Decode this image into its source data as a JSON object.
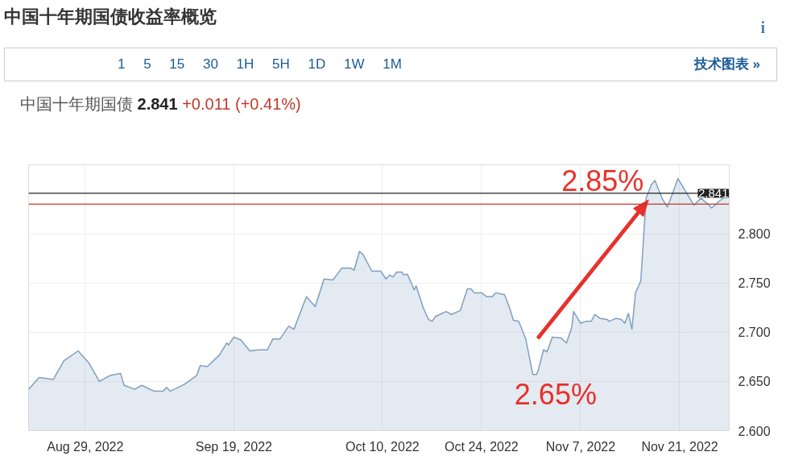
{
  "chart_data": {
    "type": "area",
    "title": "中国十年期国债收益率概览",
    "subtitle": "中国十年期国债 2.841 +0.011 (+0.41%)",
    "annotations": [
      "1 5 15 30 1H 5H 1D 1W 1M",
      "技术图表 »",
      "i",
      {
        "text": "2.85%",
        "x": "2022-11-17T12:00",
        "y": 2.854
      },
      {
        "text": "2.65%",
        "x": "2022-10-31T12:00",
        "y": 2.657
      }
    ],
    "x": [
      "2022-08-21T00:00",
      "2022-08-22T12:00",
      "2022-08-24T12:00",
      "2022-08-26T00:00",
      "2022-08-28T00:00",
      "2022-08-29T12:00",
      "2022-08-31T00:00",
      "2022-09-01T12:00",
      "2022-09-03T00:00",
      "2022-09-03T12:00",
      "2022-09-05T00:00",
      "2022-09-06T00:00",
      "2022-09-07T18:00",
      "2022-09-09T00:00",
      "2022-09-09T12:00",
      "2022-09-10T00:00",
      "2022-09-12T00:00",
      "2022-09-13T18:00",
      "2022-09-14T06:00",
      "2022-09-15T06:00",
      "2022-09-17T00:00",
      "2022-09-18T00:00",
      "2022-09-18T06:00",
      "2022-09-19T00:00",
      "2022-09-20T00:00",
      "2022-09-21T06:00",
      "2022-09-22T12:00",
      "2022-09-23T18:00",
      "2022-09-24T12:00",
      "2022-09-25T12:00",
      "2022-09-26T18:00",
      "2022-09-27T12:00",
      "2022-09-29T06:00",
      "2022-09-30T12:00",
      "2022-10-01T18:00",
      "2022-10-03T00:00",
      "2022-10-04T06:00",
      "2022-10-05T12:00",
      "2022-10-06T00:00",
      "2022-10-06T18:00",
      "2022-10-07T06:00",
      "2022-10-08T12:00",
      "2022-10-09T18:00",
      "2022-10-10T12:00",
      "2022-10-11T00:00",
      "2022-10-11T12:00",
      "2022-10-12T00:00",
      "2022-10-12T18:00",
      "2022-10-13T00:00",
      "2022-10-13T12:00",
      "2022-10-14T12:00",
      "2022-10-14T18:00",
      "2022-10-15T18:00",
      "2022-10-16T12:00",
      "2022-10-17T00:00",
      "2022-10-17T12:00",
      "2022-10-19T00:00",
      "2022-10-19T18:00",
      "2022-10-21T00:00",
      "2022-10-22T00:00",
      "2022-10-22T12:00",
      "2022-10-23T00:00",
      "2022-10-24T00:00",
      "2022-10-24T18:00",
      "2022-10-25T12:00",
      "2022-10-26T00:00",
      "2022-10-27T06:00",
      "2022-10-28T00:00",
      "2022-10-28T12:00",
      "2022-10-29T06:00",
      "2022-10-30T06:00",
      "2022-10-31T06:00",
      "2022-10-31T18:00",
      "2022-11-01T00:00",
      "2022-11-01T18:00",
      "2022-11-02T06:00",
      "2022-11-03T00:00",
      "2022-11-04T06:00",
      "2022-11-05T00:00",
      "2022-11-05T18:00",
      "2022-11-06T00:00",
      "2022-11-07T00:00",
      "2022-11-07T18:00",
      "2022-11-08T12:00",
      "2022-11-09T00:00",
      "2022-11-09T18:00",
      "2022-11-10T18:00",
      "2022-11-11T00:00",
      "2022-11-12T00:00",
      "2022-11-12T18:00",
      "2022-11-13T06:00",
      "2022-11-13T18:00",
      "2022-11-14T06:00",
      "2022-11-14T18:00",
      "2022-11-15T12:00",
      "2022-11-16T06:00",
      "2022-11-17T00:00",
      "2022-11-17T12:00",
      "2022-11-18T12:00",
      "2022-11-19T06:00",
      "2022-11-20T00:00",
      "2022-11-20T18:00",
      "2022-11-21T18:00",
      "2022-11-23T00:00",
      "2022-11-24T00:00",
      "2022-11-25T00:00",
      "2022-11-25T12:00",
      "2022-11-26T18:00",
      "2022-11-28T00:00"
    ],
    "series": [
      {
        "color": "#7f9fbf",
        "values": [
          2.642,
          2.654,
          2.652,
          2.671,
          2.681,
          2.669,
          2.65,
          2.656,
          2.658,
          2.646,
          2.642,
          2.646,
          2.64,
          2.64,
          2.644,
          2.64,
          2.647,
          2.656,
          2.666,
          2.665,
          2.677,
          2.689,
          2.687,
          2.695,
          2.692,
          2.681,
          2.682,
          2.682,
          2.693,
          2.693,
          2.706,
          2.703,
          2.736,
          2.726,
          2.754,
          2.753,
          2.765,
          2.765,
          2.763,
          2.782,
          2.779,
          2.762,
          2.762,
          2.754,
          2.758,
          2.756,
          2.761,
          2.761,
          2.758,
          2.759,
          2.743,
          2.747,
          2.725,
          2.713,
          2.711,
          2.716,
          2.721,
          2.718,
          2.722,
          2.744,
          2.744,
          2.74,
          2.74,
          2.736,
          2.736,
          2.74,
          2.738,
          2.724,
          2.712,
          2.711,
          2.693,
          2.657,
          2.657,
          2.661,
          2.682,
          2.68,
          2.695,
          2.694,
          2.689,
          2.705,
          2.721,
          2.709,
          2.711,
          2.711,
          2.718,
          2.714,
          2.713,
          2.711,
          2.714,
          2.713,
          2.709,
          2.719,
          2.703,
          2.74,
          2.752,
          2.836,
          2.85,
          2.854,
          2.836,
          2.827,
          2.841,
          2.856,
          2.844,
          2.829,
          2.836,
          2.83,
          2.826,
          2.834,
          2.841
        ]
      }
    ],
    "xlim": [
      "2022-08-21",
      "2022-11-28"
    ],
    "xticks": [
      {
        "value": "2022-08-29",
        "label": "Aug 29, 2022"
      },
      {
        "value": "2022-09-19",
        "label": "Sep 19, 2022"
      },
      {
        "value": "2022-10-10",
        "label": "Oct 10, 2022"
      },
      {
        "value": "2022-10-24",
        "label": "Oct 24, 2022"
      },
      {
        "value": "2022-11-07",
        "label": "Nov 7, 2022"
      },
      {
        "value": "2022-11-21",
        "label": "Nov 21, 2022"
      }
    ],
    "ylim": [
      2.6,
      2.87
    ],
    "yticks": [
      {
        "value": 2.6,
        "label": "2.600"
      },
      {
        "value": 2.65,
        "label": "2.650"
      },
      {
        "value": 2.7,
        "label": "2.700"
      },
      {
        "value": 2.75,
        "label": "2.750"
      },
      {
        "value": 2.8,
        "label": "2.800"
      }
    ],
    "ref_lines": [
      {
        "axis": "y",
        "value": 2.841,
        "label": "2.841",
        "color": "#222222"
      },
      {
        "axis": "y",
        "value": 2.83,
        "label": null,
        "color": "#c0392b"
      }
    ],
    "grid": true
  }
}
